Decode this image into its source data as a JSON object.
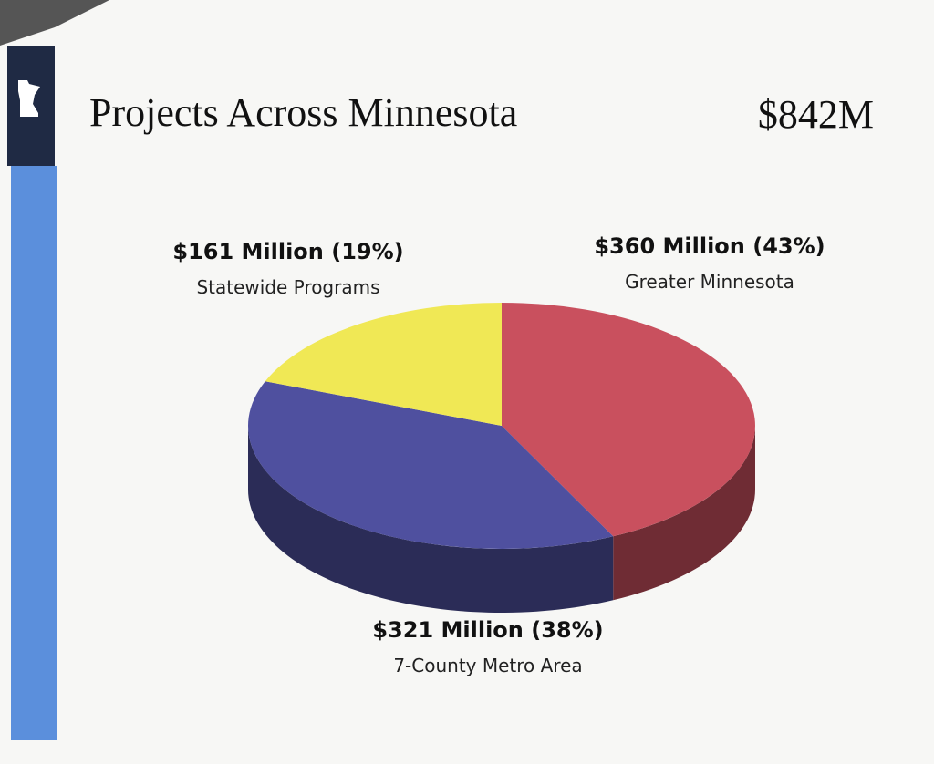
{
  "chart_data": {
    "type": "pie",
    "title": "Projects Across Minnesota",
    "total_label": "$842M",
    "categories": [
      "Greater Minnesota",
      "7-County Metro Area",
      "Statewide Programs"
    ],
    "values": [
      360,
      321,
      161
    ],
    "value_labels": [
      "$360 Million (43%)",
      "$321 Million (38%)",
      "$161 Million (19%)"
    ],
    "colors": [
      "#c9505e",
      "#4f509f",
      "#f0e855"
    ]
  }
}
